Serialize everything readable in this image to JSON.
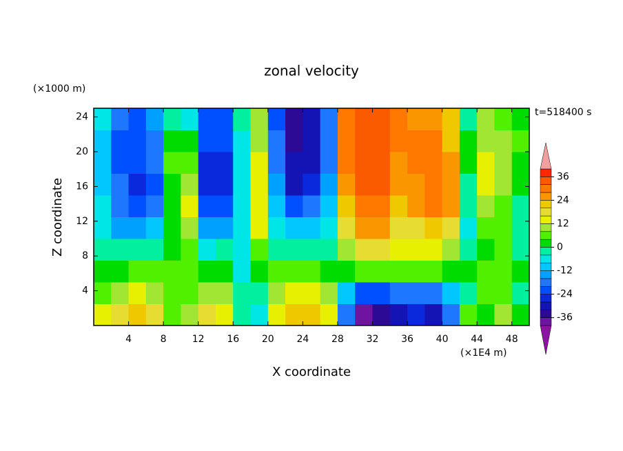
{
  "chart_data": {
    "type": "contour",
    "title": "zonal velocity",
    "x_label": "X coordinate",
    "y_label": "Z coordinate",
    "x_unit": "(×1E4 m)",
    "y_unit": "(×1000 m)",
    "annotation": "t=518400 s",
    "x": [
      1,
      3,
      5,
      7,
      9,
      11,
      13,
      15,
      17,
      19,
      21,
      23,
      25,
      27,
      29,
      31,
      33,
      35,
      37,
      39,
      41,
      43,
      45,
      47,
      49
    ],
    "z": [
      1.25,
      3.75,
      6.25,
      8.75,
      11.25,
      13.75,
      16.25,
      18.75,
      21.25,
      23.75
    ],
    "values": [
      [
        12,
        16,
        20,
        16,
        6,
        10,
        18,
        14,
        -4,
        -8,
        12,
        22,
        20,
        14,
        -20,
        -38,
        -34,
        -30,
        -26,
        -30,
        -20,
        4,
        2,
        8,
        0
      ],
      [
        6,
        10,
        12,
        10,
        4,
        6,
        10,
        8,
        -2,
        -2,
        8,
        12,
        12,
        8,
        -12,
        -24,
        -22,
        -20,
        -18,
        -20,
        -12,
        -2,
        4,
        4,
        -2
      ],
      [
        0,
        2,
        4,
        4,
        4,
        6,
        2,
        2,
        -6,
        0,
        4,
        4,
        4,
        2,
        2,
        4,
        6,
        4,
        4,
        4,
        2,
        0,
        4,
        6,
        0
      ],
      [
        -4,
        -4,
        -4,
        -2,
        2,
        4,
        -6,
        -4,
        -8,
        6,
        -2,
        -4,
        -2,
        -2,
        10,
        16,
        16,
        12,
        14,
        14,
        10,
        -4,
        2,
        4,
        -2
      ],
      [
        -8,
        -14,
        -14,
        -10,
        0,
        10,
        -14,
        -14,
        -8,
        14,
        -8,
        -12,
        -10,
        -8,
        16,
        24,
        24,
        16,
        18,
        22,
        18,
        -6,
        6,
        4,
        -4
      ],
      [
        -8,
        -18,
        -22,
        -18,
        0,
        12,
        -22,
        -22,
        -8,
        14,
        -12,
        -22,
        -18,
        -12,
        20,
        30,
        30,
        22,
        24,
        28,
        24,
        -4,
        10,
        6,
        -2
      ],
      [
        -10,
        -20,
        -26,
        -22,
        2,
        8,
        -26,
        -26,
        -6,
        14,
        -16,
        -30,
        -26,
        -16,
        24,
        32,
        32,
        24,
        26,
        30,
        26,
        -2,
        12,
        8,
        0
      ],
      [
        -10,
        -22,
        -24,
        -20,
        4,
        6,
        -26,
        -26,
        -6,
        12,
        -18,
        -32,
        -30,
        -18,
        28,
        34,
        32,
        26,
        28,
        30,
        24,
        0,
        12,
        10,
        2
      ],
      [
        -10,
        -22,
        -24,
        -18,
        2,
        0,
        -24,
        -24,
        -6,
        10,
        -20,
        -34,
        -32,
        -20,
        30,
        34,
        34,
        28,
        28,
        28,
        20,
        0,
        10,
        8,
        4
      ],
      [
        -8,
        -20,
        -22,
        -16,
        -4,
        -6,
        -22,
        -22,
        -4,
        8,
        -22,
        -34,
        -32,
        -20,
        30,
        34,
        34,
        30,
        26,
        26,
        20,
        -2,
        8,
        6,
        2
      ]
    ],
    "levels": [
      -40,
      -36,
      -32,
      -28,
      -24,
      -20,
      -16,
      -12,
      -8,
      -4,
      0,
      4,
      8,
      12,
      16,
      20,
      24,
      28,
      32,
      36,
      40
    ],
    "colors": [
      "#8c14a0",
      "#6e14a0",
      "#2d0a96",
      "#1414b4",
      "#0a28dc",
      "#0050ff",
      "#1e78ff",
      "#00a0ff",
      "#00c8ff",
      "#00e6e6",
      "#00f0a0",
      "#00dc00",
      "#50f000",
      "#a0e632",
      "#e6f000",
      "#e6dc32",
      "#f0c800",
      "#fa9600",
      "#ff7800",
      "#fa5a00",
      "#ff2800",
      "#f0a0a0"
    ],
    "colorbar_ticks": [
      -36,
      -24,
      -12,
      0,
      12,
      24,
      36
    ],
    "xlim": [
      0,
      50
    ],
    "ylim": [
      0,
      25
    ],
    "xticks": [
      4,
      8,
      12,
      16,
      20,
      24,
      28,
      32,
      36,
      40,
      44,
      48
    ],
    "yticks": [
      4,
      8,
      12,
      16,
      20,
      24
    ]
  }
}
